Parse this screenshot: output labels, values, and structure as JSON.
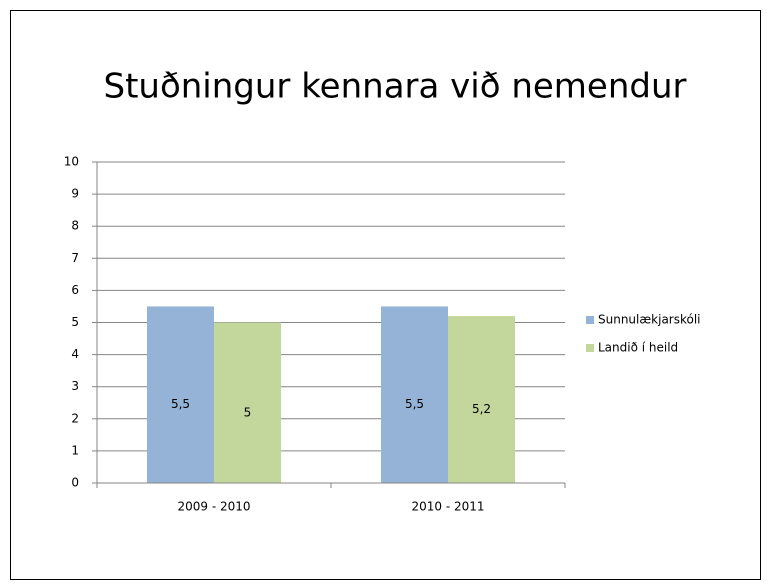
{
  "chart_data": {
    "type": "bar",
    "title": "Stuðningur kennara við nemendur",
    "categories": [
      "2009 - 2010",
      "2010 - 2011"
    ],
    "series": [
      {
        "name": "Sunnulækjarskóli",
        "color": "#95b3d7",
        "values": [
          5.5,
          5.5
        ],
        "value_labels": [
          "5,5",
          "5,5"
        ]
      },
      {
        "name": "Landið í heild",
        "color": "#c3d69b",
        "values": [
          5,
          5.2
        ],
        "value_labels": [
          "5",
          "5,2"
        ]
      }
    ],
    "ylim": [
      0,
      10
    ],
    "yticks": [
      0,
      1,
      2,
      3,
      4,
      5,
      6,
      7,
      8,
      9,
      10
    ],
    "grid": true,
    "legend": "right"
  }
}
